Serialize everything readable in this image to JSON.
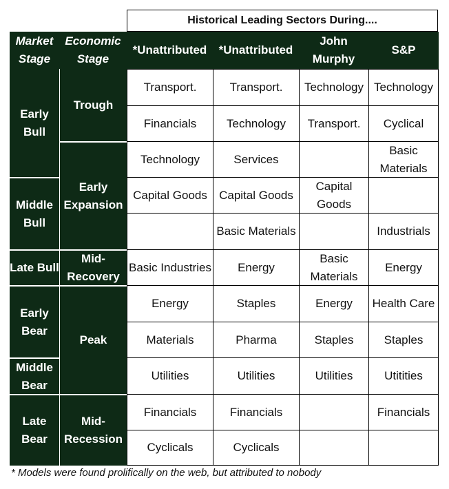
{
  "title": "Historical Leading Sectors During....",
  "headers": {
    "market_stage": "Market Stage",
    "economic_stage": "Economic Stage",
    "sources": [
      "*Unattributed",
      "*Unattributed",
      "John Murphy",
      "S&P"
    ]
  },
  "market_stages": [
    "Early Bull",
    "Middle Bull",
    "Late Bull",
    "Early Bear",
    "Middle Bear",
    "Late Bear"
  ],
  "economic_stages": [
    "Trough",
    "Early Expansion",
    "Mid-Recovery",
    "Peak",
    "Mid-Recession"
  ],
  "rows": [
    [
      "Transport.",
      "Transport.",
      "Technology",
      "Technology"
    ],
    [
      "Financials",
      "Technology",
      "Transport.",
      "Cyclical"
    ],
    [
      "Technology",
      "Services",
      "",
      "Basic Materials"
    ],
    [
      "Capital Goods",
      "Capital Goods",
      "Capital Goods",
      ""
    ],
    [
      "",
      "Basic Materials",
      "",
      "Industrials"
    ],
    [
      "Basic Industries",
      "Energy",
      "Basic Materials",
      "Energy"
    ],
    [
      "Energy",
      "Staples",
      "Energy",
      "Health Care"
    ],
    [
      "Materials",
      "Pharma",
      "Staples",
      "Staples"
    ],
    [
      "Utilities",
      "Utilities",
      "Utilities",
      "Utitities"
    ],
    [
      "Financials",
      "Financials",
      "",
      "Financials"
    ],
    [
      "Cyclicals",
      "Cyclicals",
      "",
      ""
    ]
  ],
  "footnote": "* Models were found prolifically on the web, but attributed to nobody",
  "colors": {
    "dark_green": "#0e2a16",
    "text": "#111111"
  }
}
